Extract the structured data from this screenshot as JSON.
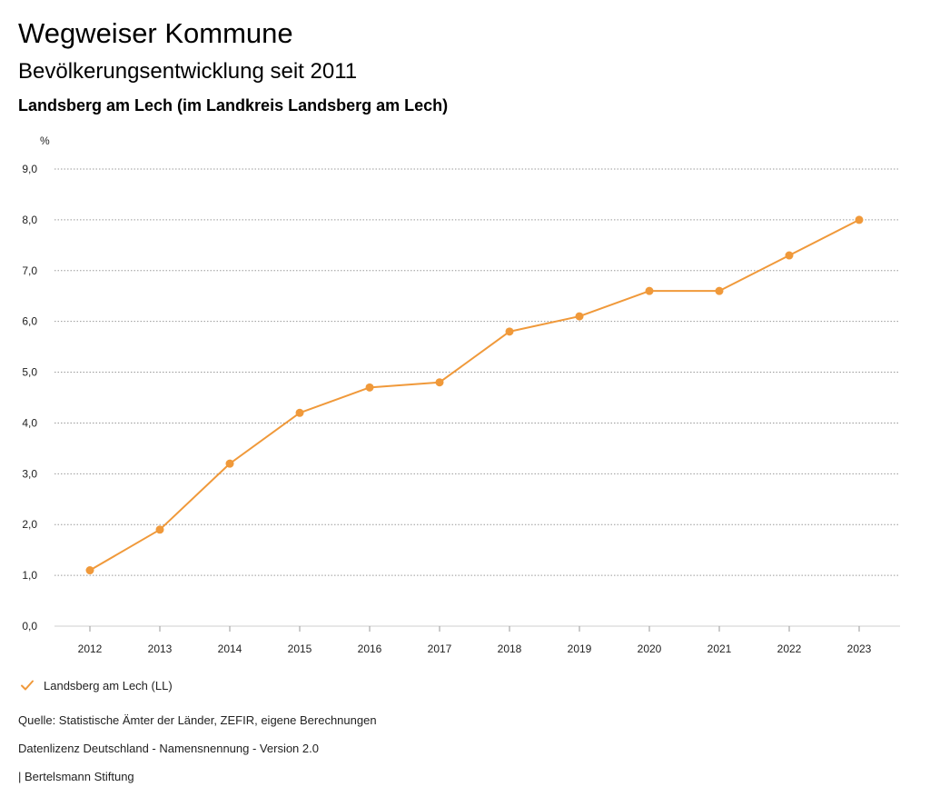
{
  "header": {
    "title": "Wegweiser Kommune",
    "subtitle": "Bevölkerungsentwicklung seit 2011",
    "place": "Landsberg am Lech (im Landkreis Landsberg am Lech)"
  },
  "chart_data": {
    "type": "line",
    "ylabel": "%",
    "xlabel": "",
    "x": [
      "2012",
      "2013",
      "2014",
      "2015",
      "2016",
      "2017",
      "2018",
      "2019",
      "2020",
      "2021",
      "2022",
      "2023"
    ],
    "series": [
      {
        "name": "Landsberg am Lech (LL)",
        "color": "#f0993a",
        "values": [
          1.1,
          1.9,
          3.2,
          4.2,
          4.7,
          4.8,
          5.8,
          6.1,
          6.6,
          6.6,
          7.3,
          8.0
        ]
      }
    ],
    "ylim": [
      0,
      9
    ],
    "yticks": [
      "0,0",
      "1,0",
      "2,0",
      "3,0",
      "4,0",
      "5,0",
      "6,0",
      "7,0",
      "8,0",
      "9,0"
    ],
    "grid": true,
    "legend": "bottom-left"
  },
  "legend": {
    "label": "Landsberg am Lech (LL)"
  },
  "footer": {
    "source": "Quelle: Statistische Ämter der Länder, ZEFIR, eigene Berechnungen",
    "license": "Datenlizenz Deutschland - Namensnennung - Version 2.0",
    "publisher": "| Bertelsmann Stiftung"
  }
}
